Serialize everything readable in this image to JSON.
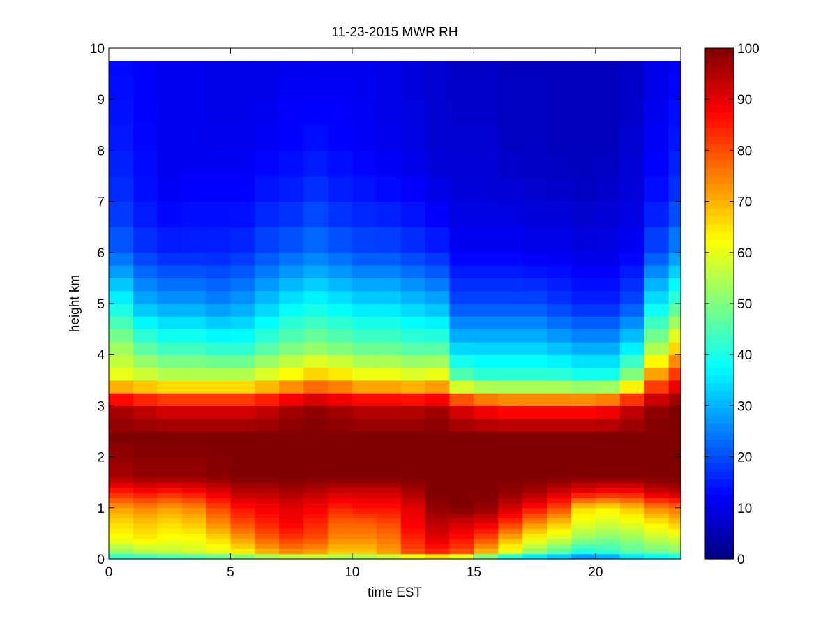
{
  "chart_data": {
    "type": "heatmap",
    "title": "11-23-2015 MWR RH",
    "xlabel": "time EST",
    "ylabel": "height km",
    "xlim": [
      0,
      23.5
    ],
    "ylim": [
      0,
      10
    ],
    "x_ticks": [
      0,
      5,
      10,
      15,
      20
    ],
    "y_ticks": [
      0,
      1,
      2,
      3,
      4,
      5,
      6,
      7,
      8,
      9,
      10
    ],
    "colorbar": {
      "colormap": "jet",
      "range": [
        0,
        100
      ],
      "ticks": [
        0,
        10,
        20,
        30,
        40,
        50,
        60,
        70,
        80,
        90,
        100
      ]
    },
    "data_top_km": 9.75,
    "time_bins_hr": [
      0.5,
      1.5,
      2.5,
      3.5,
      4.5,
      5.5,
      6.5,
      7.5,
      8.5,
      9.5,
      10.5,
      11.5,
      12.5,
      13.5,
      14.5,
      15.5,
      16.5,
      17.5,
      18.5,
      19.5,
      20.5,
      21.5,
      22.5,
      23.5
    ],
    "height_levels_km": [
      0,
      0.1,
      0.2,
      0.3,
      0.4,
      0.5,
      0.6,
      0.7,
      0.8,
      0.9,
      1.0,
      1.1,
      1.2,
      1.3,
      1.4,
      1.5,
      1.6,
      1.7,
      1.8,
      1.9,
      2.0,
      2.25,
      2.5,
      2.75,
      3.0,
      3.25,
      3.5,
      3.75,
      4.0,
      4.25,
      4.5,
      4.75,
      5.0,
      5.25,
      5.5,
      5.75,
      6.0,
      6.5,
      7.0,
      7.5,
      8.0,
      8.5,
      9.0,
      9.5,
      9.75
    ],
    "rh_profiles": [
      {
        "time": 0.5,
        "heights_km": [
          0,
          0.15,
          0.4,
          0.7,
          1.0,
          1.3,
          1.6,
          2.4,
          3.0,
          3.5,
          4.2,
          5.0,
          6.0,
          7.0,
          8.0,
          9.75
        ],
        "rh": [
          38,
          52,
          62,
          66,
          72,
          84,
          96,
          100,
          95,
          62,
          52,
          38,
          22,
          17,
          15,
          13
        ]
      },
      {
        "time": 1.5,
        "heights_km": [
          0,
          0.15,
          0.4,
          0.7,
          1.0,
          1.3,
          1.6,
          2.4,
          3.0,
          3.5,
          4.2,
          5.0,
          6.0,
          7.0,
          8.0,
          9.75
        ],
        "rh": [
          38,
          55,
          64,
          68,
          74,
          86,
          98,
          100,
          92,
          60,
          45,
          30,
          18,
          14,
          13,
          12
        ]
      },
      {
        "time": 2.5,
        "heights_km": [
          0,
          0.15,
          0.4,
          0.7,
          1.0,
          1.3,
          1.6,
          2.4,
          3.0,
          3.5,
          4.2,
          5.0,
          6.0,
          7.0,
          8.0,
          9.75
        ],
        "rh": [
          40,
          56,
          62,
          66,
          72,
          84,
          98,
          100,
          90,
          58,
          42,
          28,
          16,
          12,
          11,
          11
        ]
      },
      {
        "time": 3.5,
        "heights_km": [
          0,
          0.15,
          0.4,
          0.7,
          1.0,
          1.3,
          1.6,
          2.4,
          3.0,
          3.5,
          4.2,
          5.0,
          6.0,
          7.0,
          8.0,
          9.75
        ],
        "rh": [
          40,
          58,
          62,
          68,
          74,
          86,
          98,
          100,
          90,
          58,
          42,
          28,
          16,
          13,
          11,
          11
        ]
      },
      {
        "time": 4.5,
        "heights_km": [
          0,
          0.15,
          0.4,
          0.7,
          1.0,
          1.3,
          1.6,
          2.4,
          3.0,
          3.5,
          4.2,
          5.0,
          6.0,
          7.0,
          8.0,
          9.75
        ],
        "rh": [
          42,
          60,
          66,
          74,
          80,
          90,
          99,
          100,
          90,
          58,
          40,
          26,
          16,
          13,
          11,
          10
        ]
      },
      {
        "time": 5.5,
        "heights_km": [
          0,
          0.15,
          0.4,
          0.7,
          1.0,
          1.3,
          1.6,
          2.4,
          3.0,
          3.5,
          4.2,
          5.0,
          6.0,
          7.0,
          8.0,
          9.75
        ],
        "rh": [
          44,
          64,
          72,
          80,
          86,
          94,
          100,
          100,
          90,
          58,
          40,
          28,
          17,
          13,
          11,
          10
        ]
      },
      {
        "time": 6.5,
        "heights_km": [
          0,
          0.15,
          0.4,
          0.7,
          1.0,
          1.3,
          1.6,
          2.4,
          3.0,
          3.5,
          4.2,
          5.0,
          6.0,
          7.0,
          8.0,
          9.75
        ],
        "rh": [
          46,
          70,
          78,
          84,
          88,
          94,
          100,
          100,
          92,
          62,
          44,
          32,
          20,
          15,
          12,
          10
        ]
      },
      {
        "time": 7.5,
        "heights_km": [
          0,
          0.15,
          0.4,
          0.7,
          1.0,
          1.3,
          1.6,
          2.4,
          3.0,
          3.5,
          4.2,
          5.0,
          6.0,
          7.0,
          8.0,
          9.75
        ],
        "rh": [
          48,
          74,
          82,
          88,
          90,
          96,
          100,
          100,
          96,
          66,
          48,
          36,
          22,
          16,
          13,
          11
        ]
      },
      {
        "time": 8.5,
        "heights_km": [
          0,
          0.15,
          0.4,
          0.7,
          1.0,
          1.3,
          1.6,
          2.4,
          3.0,
          3.5,
          4.2,
          5.0,
          6.0,
          7.0,
          8.0,
          9.75
        ],
        "rh": [
          50,
          72,
          80,
          84,
          88,
          94,
          100,
          100,
          98,
          70,
          50,
          38,
          24,
          18,
          14,
          11
        ]
      },
      {
        "time": 9.5,
        "heights_km": [
          0,
          0.15,
          0.4,
          0.7,
          1.0,
          1.3,
          1.6,
          2.4,
          3.0,
          3.5,
          4.2,
          5.0,
          6.0,
          7.0,
          8.0,
          9.75
        ],
        "rh": [
          48,
          68,
          74,
          78,
          84,
          92,
          100,
          100,
          96,
          68,
          48,
          36,
          22,
          16,
          13,
          11
        ]
      },
      {
        "time": 10.5,
        "heights_km": [
          0,
          0.15,
          0.4,
          0.7,
          1.0,
          1.3,
          1.6,
          2.4,
          3.0,
          3.5,
          4.2,
          5.0,
          6.0,
          7.0,
          8.0,
          9.75
        ],
        "rh": [
          48,
          68,
          74,
          78,
          86,
          92,
          100,
          100,
          94,
          64,
          46,
          34,
          20,
          15,
          12,
          11
        ]
      },
      {
        "time": 11.5,
        "heights_km": [
          0,
          0.15,
          0.4,
          0.7,
          1.0,
          1.3,
          1.6,
          2.4,
          3.0,
          3.5,
          4.2,
          5.0,
          6.0,
          7.0,
          8.0,
          9.75
        ],
        "rh": [
          50,
          72,
          76,
          80,
          86,
          92,
          100,
          100,
          94,
          64,
          46,
          34,
          20,
          14,
          11,
          10
        ]
      },
      {
        "time": 12.5,
        "heights_km": [
          0,
          0.15,
          0.4,
          0.7,
          1.0,
          1.3,
          1.6,
          2.4,
          3.0,
          3.5,
          4.2,
          5.0,
          6.0,
          7.0,
          8.0,
          9.75
        ],
        "rh": [
          52,
          80,
          84,
          88,
          90,
          96,
          100,
          100,
          94,
          62,
          44,
          32,
          18,
          13,
          10,
          9
        ]
      },
      {
        "time": 13.5,
        "heights_km": [
          0,
          0.15,
          0.4,
          0.7,
          1.0,
          1.3,
          1.6,
          2.4,
          3.0,
          3.5,
          4.2,
          5.0,
          6.0,
          7.0,
          8.0,
          9.75
        ],
        "rh": [
          56,
          84,
          90,
          94,
          98,
          100,
          100,
          100,
          96,
          64,
          44,
          30,
          16,
          11,
          8,
          8
        ]
      },
      {
        "time": 14.5,
        "heights_km": [
          0,
          0.15,
          0.4,
          0.7,
          1.0,
          1.3,
          1.6,
          2.4,
          3.0,
          3.5,
          4.2,
          5.0,
          6.0,
          7.0,
          8.0,
          9.75
        ],
        "rh": [
          50,
          80,
          86,
          92,
          100,
          100,
          100,
          100,
          90,
          48,
          32,
          20,
          12,
          9,
          8,
          7
        ]
      },
      {
        "time": 15.5,
        "heights_km": [
          0,
          0.15,
          0.4,
          0.7,
          1.0,
          1.3,
          1.6,
          2.4,
          3.0,
          3.5,
          4.2,
          5.0,
          6.0,
          7.0,
          8.0,
          9.75
        ],
        "rh": [
          40,
          70,
          80,
          90,
          98,
          100,
          100,
          100,
          86,
          44,
          32,
          20,
          12,
          9,
          8,
          7
        ]
      },
      {
        "time": 16.5,
        "heights_km": [
          0,
          0.15,
          0.4,
          0.7,
          1.0,
          1.3,
          1.6,
          2.4,
          3.0,
          3.5,
          4.2,
          5.0,
          6.0,
          7.0,
          8.0,
          9.75
        ],
        "rh": [
          32,
          60,
          70,
          82,
          92,
          98,
          100,
          100,
          84,
          44,
          32,
          20,
          12,
          9,
          7,
          6
        ]
      },
      {
        "time": 17.5,
        "heights_km": [
          0,
          0.15,
          0.4,
          0.7,
          1.0,
          1.3,
          1.6,
          2.4,
          3.0,
          3.5,
          4.2,
          5.0,
          6.0,
          7.0,
          8.0,
          9.75
        ],
        "rh": [
          28,
          52,
          62,
          74,
          86,
          96,
          100,
          100,
          84,
          44,
          32,
          20,
          11,
          8,
          7,
          6
        ]
      },
      {
        "time": 18.5,
        "heights_km": [
          0,
          0.15,
          0.4,
          0.7,
          1.0,
          1.3,
          1.6,
          2.4,
          3.0,
          3.5,
          4.2,
          5.0,
          6.0,
          7.0,
          8.0,
          9.75
        ],
        "rh": [
          26,
          46,
          58,
          68,
          80,
          92,
          100,
          100,
          84,
          44,
          30,
          18,
          11,
          8,
          6,
          6
        ]
      },
      {
        "time": 19.5,
        "heights_km": [
          0,
          0.15,
          0.4,
          0.7,
          1.0,
          1.3,
          1.6,
          2.4,
          3.0,
          3.5,
          4.2,
          5.0,
          6.0,
          7.0,
          8.0,
          9.75
        ],
        "rh": [
          22,
          40,
          52,
          60,
          66,
          88,
          100,
          100,
          84,
          42,
          28,
          16,
          10,
          7,
          6,
          6
        ]
      },
      {
        "time": 20.5,
        "heights_km": [
          0,
          0.15,
          0.4,
          0.7,
          1.0,
          1.3,
          1.6,
          2.4,
          3.0,
          3.5,
          4.2,
          5.0,
          6.0,
          7.0,
          8.0,
          9.75
        ],
        "rh": [
          24,
          42,
          50,
          58,
          64,
          86,
          100,
          100,
          86,
          42,
          28,
          16,
          10,
          8,
          6,
          6
        ]
      },
      {
        "time": 21.5,
        "heights_km": [
          0,
          0.15,
          0.4,
          0.7,
          1.0,
          1.3,
          1.6,
          2.4,
          3.0,
          3.5,
          4.2,
          5.0,
          6.0,
          7.0,
          8.0,
          9.75
        ],
        "rh": [
          30,
          46,
          52,
          60,
          68,
          86,
          100,
          100,
          92,
          54,
          34,
          20,
          12,
          9,
          8,
          7
        ]
      },
      {
        "time": 22.5,
        "heights_km": [
          0,
          0.15,
          0.4,
          0.7,
          1.0,
          1.3,
          1.6,
          2.4,
          3.0,
          3.5,
          4.2,
          5.0,
          6.0,
          7.0,
          8.0,
          9.75
        ],
        "rh": [
          32,
          48,
          56,
          64,
          74,
          92,
          100,
          100,
          98,
          76,
          52,
          36,
          20,
          14,
          12,
          10
        ]
      },
      {
        "time": 23.5,
        "heights_km": [
          0,
          0.15,
          0.4,
          0.7,
          1.0,
          1.3,
          1.6,
          2.4,
          3.0,
          3.5,
          4.2,
          5.0,
          6.0,
          7.0,
          8.0,
          9.75
        ],
        "rh": [
          34,
          50,
          58,
          68,
          76,
          94,
          100,
          100,
          100,
          86,
          64,
          44,
          26,
          18,
          15,
          12
        ]
      }
    ]
  }
}
